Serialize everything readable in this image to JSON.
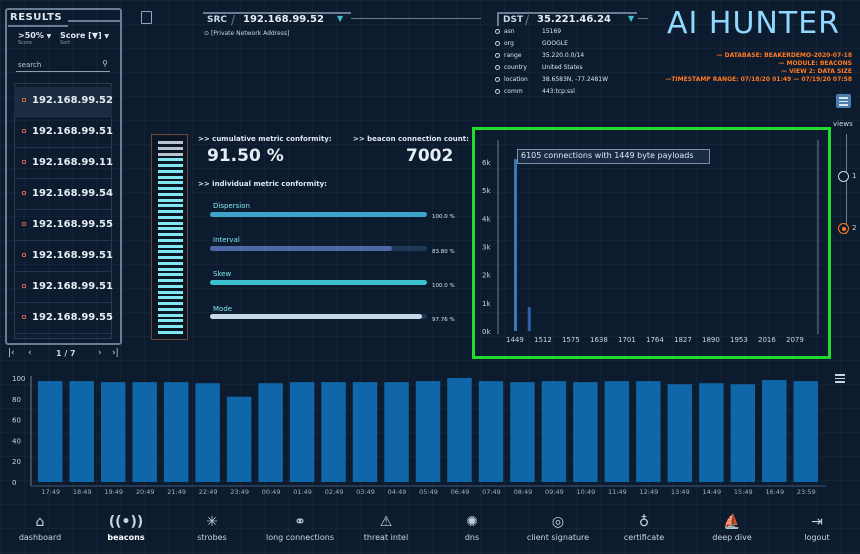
{
  "sidebar": {
    "title": "RESULTS",
    "filter1": {
      "value": ">50%",
      "label": "Score"
    },
    "filter2": {
      "value": "Score [▼]",
      "label": "Sort"
    },
    "search_placeholder": "search",
    "items": [
      "192.168.99.52",
      "192.168.99.51",
      "192.168.99.11",
      "192.168.99.54",
      "192.168.99.55",
      "192.168.99.51",
      "192.168.99.51",
      "192.168.99.55"
    ],
    "pager": "1 / 7"
  },
  "src": {
    "label": "SRC",
    "ip": "192.168.99.52",
    "note": "[Private Network Address]"
  },
  "dst": {
    "label": "DST",
    "ip": "35.221.46.24",
    "fields": [
      {
        "k": "asn",
        "v": "15169"
      },
      {
        "k": "org",
        "v": "GOOGLE"
      },
      {
        "k": "range",
        "v": "35.220.0.0/14"
      },
      {
        "k": "country",
        "v": "United States"
      },
      {
        "k": "location",
        "v": "38.6583N, -77.2481W"
      },
      {
        "k": "comm",
        "v": "443:tcp:ssl"
      }
    ]
  },
  "brand": {
    "logo": "AI HUNTER"
  },
  "info": {
    "database": "— DATABASE: BEAKERDEMO-2020-07-18",
    "module": "— MODULE: BEACONS",
    "view": "— VIEW 2: DATA SIZE",
    "timestamp": "—TIMESTAMP RANGE: 07/18/20 01:49 — 07/19/20 07:58"
  },
  "metrics": {
    "cumulative_label": ">> cumulative metric conformity:",
    "cumulative_value": "91.50 %",
    "count_label": ">> beacon connection count:",
    "count_value": "7002",
    "individual_label": ">> individual metric conformity:",
    "items": [
      {
        "name": "Dispersion",
        "pct": "100.0 %",
        "frac": 1.0,
        "color": "#3ea3c9"
      },
      {
        "name": "Interval",
        "pct": "83.80 %",
        "frac": 0.838,
        "color": "#4f68a8"
      },
      {
        "name": "Skew",
        "pct": "100.0 %",
        "frac": 1.0,
        "color": "#3ec1cf"
      },
      {
        "name": "Mode",
        "pct": "97.76 %",
        "frac": 0.9776,
        "color": "#c6d9ea"
      }
    ]
  },
  "views": {
    "label": "views",
    "options": [
      "1",
      "2"
    ],
    "selected": "2"
  },
  "size_chart": {
    "tooltip": "6105 connections with 1449 byte payloads",
    "chart_data": {
      "type": "bar",
      "x_ticks": [
        "1449",
        "1512",
        "1575",
        "1638",
        "1701",
        "1764",
        "1827",
        "1890",
        "1953",
        "2016",
        "2079"
      ],
      "y_ticks": [
        "0k",
        "1k",
        "2k",
        "3k",
        "4k",
        "5k",
        "6k"
      ],
      "bars": [
        {
          "x": 1449,
          "y": 6105
        },
        {
          "x": 1480,
          "y": 850
        }
      ],
      "ylim": [
        0,
        6500
      ]
    }
  },
  "time_chart": {
    "chart_data": {
      "type": "bar",
      "y_ticks": [
        "0",
        "20",
        "40",
        "60",
        "80",
        "100"
      ],
      "categories": [
        "17:49",
        "18:49",
        "19:49",
        "20:49",
        "21:49",
        "22:49",
        "23:49",
        "00:49",
        "01:49",
        "02:49",
        "03:49",
        "04:49",
        "05:49",
        "06:49",
        "07:49",
        "08:49",
        "09:49",
        "10:49",
        "11:49",
        "12:49",
        "13:49",
        "14:49",
        "15:49",
        "16:49",
        "23:59"
      ],
      "values": [
        97,
        97,
        96,
        96,
        96,
        95,
        82,
        95,
        96,
        96,
        96,
        96,
        97,
        100,
        97,
        96,
        97,
        96,
        97,
        97,
        94,
        95,
        94,
        98,
        97
      ],
      "ylim": [
        0,
        100
      ]
    }
  },
  "nav": {
    "items": [
      {
        "label": "dashboard",
        "icon": "home-icon"
      },
      {
        "label": "beacons",
        "icon": "beacon-icon"
      },
      {
        "label": "strobes",
        "icon": "strobe-icon"
      },
      {
        "label": "long connections",
        "icon": "link-icon"
      },
      {
        "label": "threat intel",
        "icon": "warning-icon"
      },
      {
        "label": "dns",
        "icon": "dns-icon"
      },
      {
        "label": "client signature",
        "icon": "fingerprint-icon"
      },
      {
        "label": "certificate",
        "icon": "certificate-icon"
      },
      {
        "label": "deep dive",
        "icon": "sail-icon"
      },
      {
        "label": "logout",
        "icon": "logout-icon"
      }
    ],
    "active": "beacons"
  }
}
